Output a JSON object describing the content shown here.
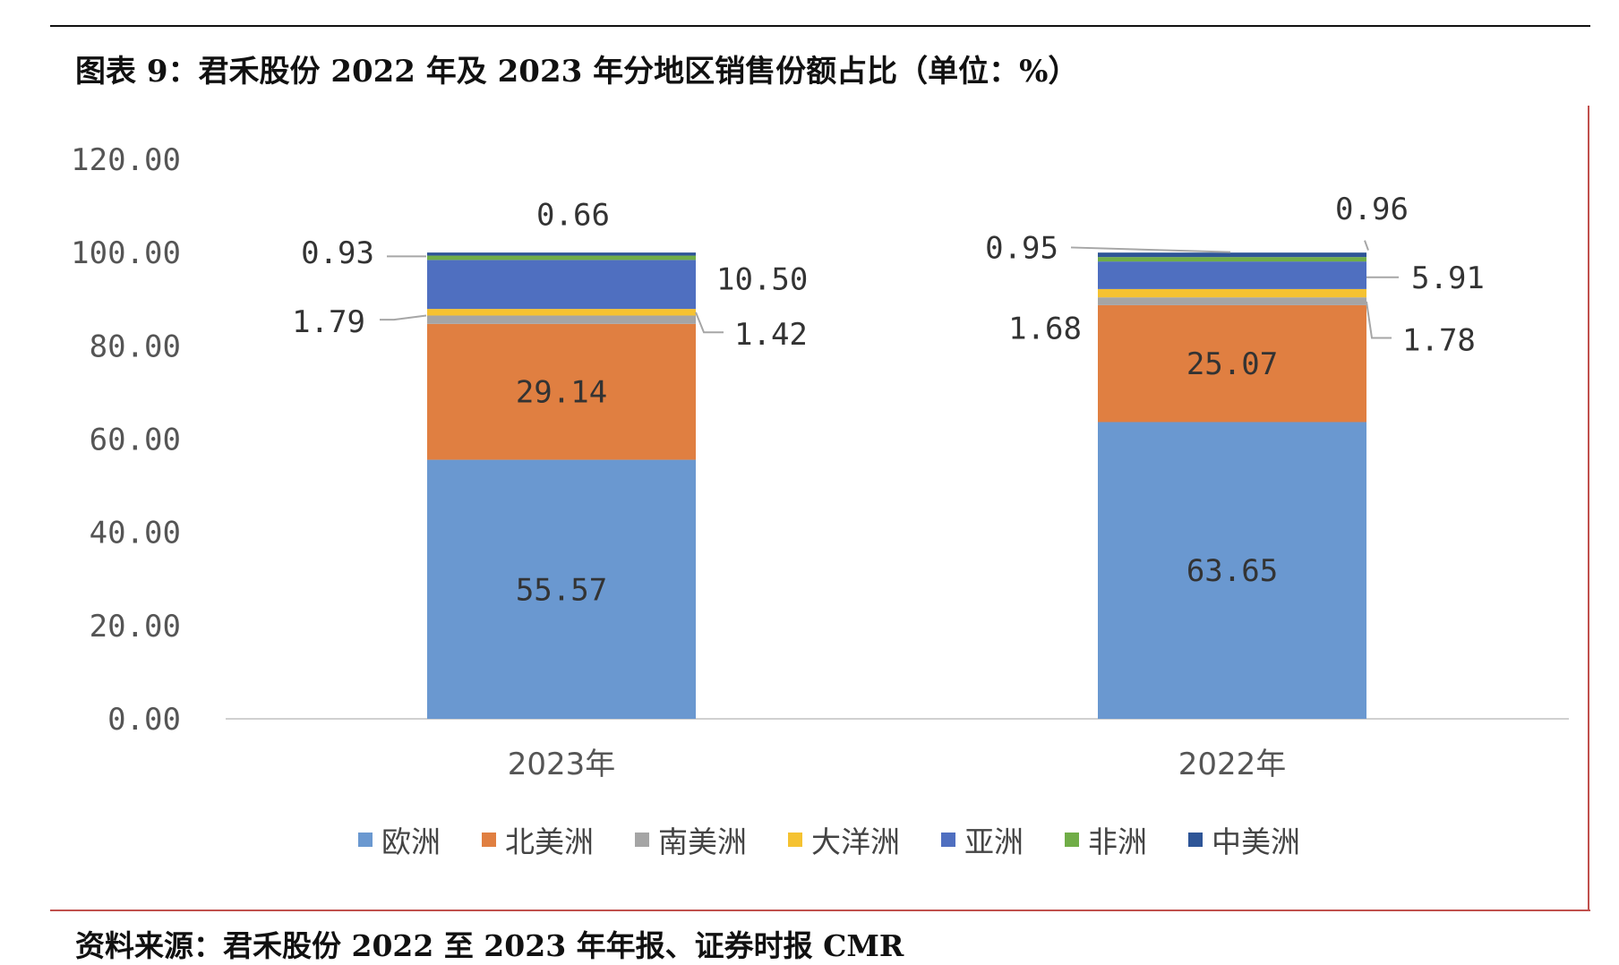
{
  "header": {
    "title": "图表 9：君禾股份 2022 年及 2023 年分地区销售份额占比（单位：%）"
  },
  "footer": {
    "source": "资料来源：君禾股份 2022 至 2023 年年报、证券时报 CMR"
  },
  "chart_data": {
    "type": "bar",
    "stacked": true,
    "title": "君禾股份 2022 年及 2023 年分地区销售份额占比（单位：%）",
    "categories": [
      "2023年",
      "2022年"
    ],
    "y_ticks": [
      "0.00",
      "20.00",
      "40.00",
      "60.00",
      "80.00",
      "100.00",
      "120.00"
    ],
    "ylim": [
      0,
      120
    ],
    "grid": false,
    "legend_position": "bottom",
    "series": [
      {
        "name": "欧洲",
        "color": "#6a98d0",
        "values": [
          55.57,
          63.65
        ],
        "labels": [
          "55.57",
          "63.65"
        ]
      },
      {
        "name": "北美洲",
        "color": "#e07f41",
        "values": [
          29.14,
          25.07
        ],
        "labels": [
          "29.14",
          "25.07"
        ]
      },
      {
        "name": "南美洲",
        "color": "#a5a5a5",
        "values": [
          1.79,
          1.68
        ],
        "labels": [
          "1.79",
          "1.68"
        ]
      },
      {
        "name": "大洋洲",
        "color": "#f5c231",
        "values": [
          1.42,
          1.78
        ],
        "labels": [
          "1.42",
          "1.78"
        ]
      },
      {
        "name": "亚洲",
        "color": "#4f6fc0",
        "values": [
          10.5,
          5.91
        ],
        "labels": [
          "10.50",
          "5.91"
        ]
      },
      {
        "name": "非洲",
        "color": "#70ad47",
        "values": [
          0.93,
          0.95
        ],
        "labels": [
          "0.93",
          "0.95"
        ]
      },
      {
        "name": "中美洲",
        "color": "#2e5597",
        "values": [
          0.66,
          0.96
        ],
        "labels": [
          "0.66",
          "0.96"
        ]
      }
    ]
  }
}
